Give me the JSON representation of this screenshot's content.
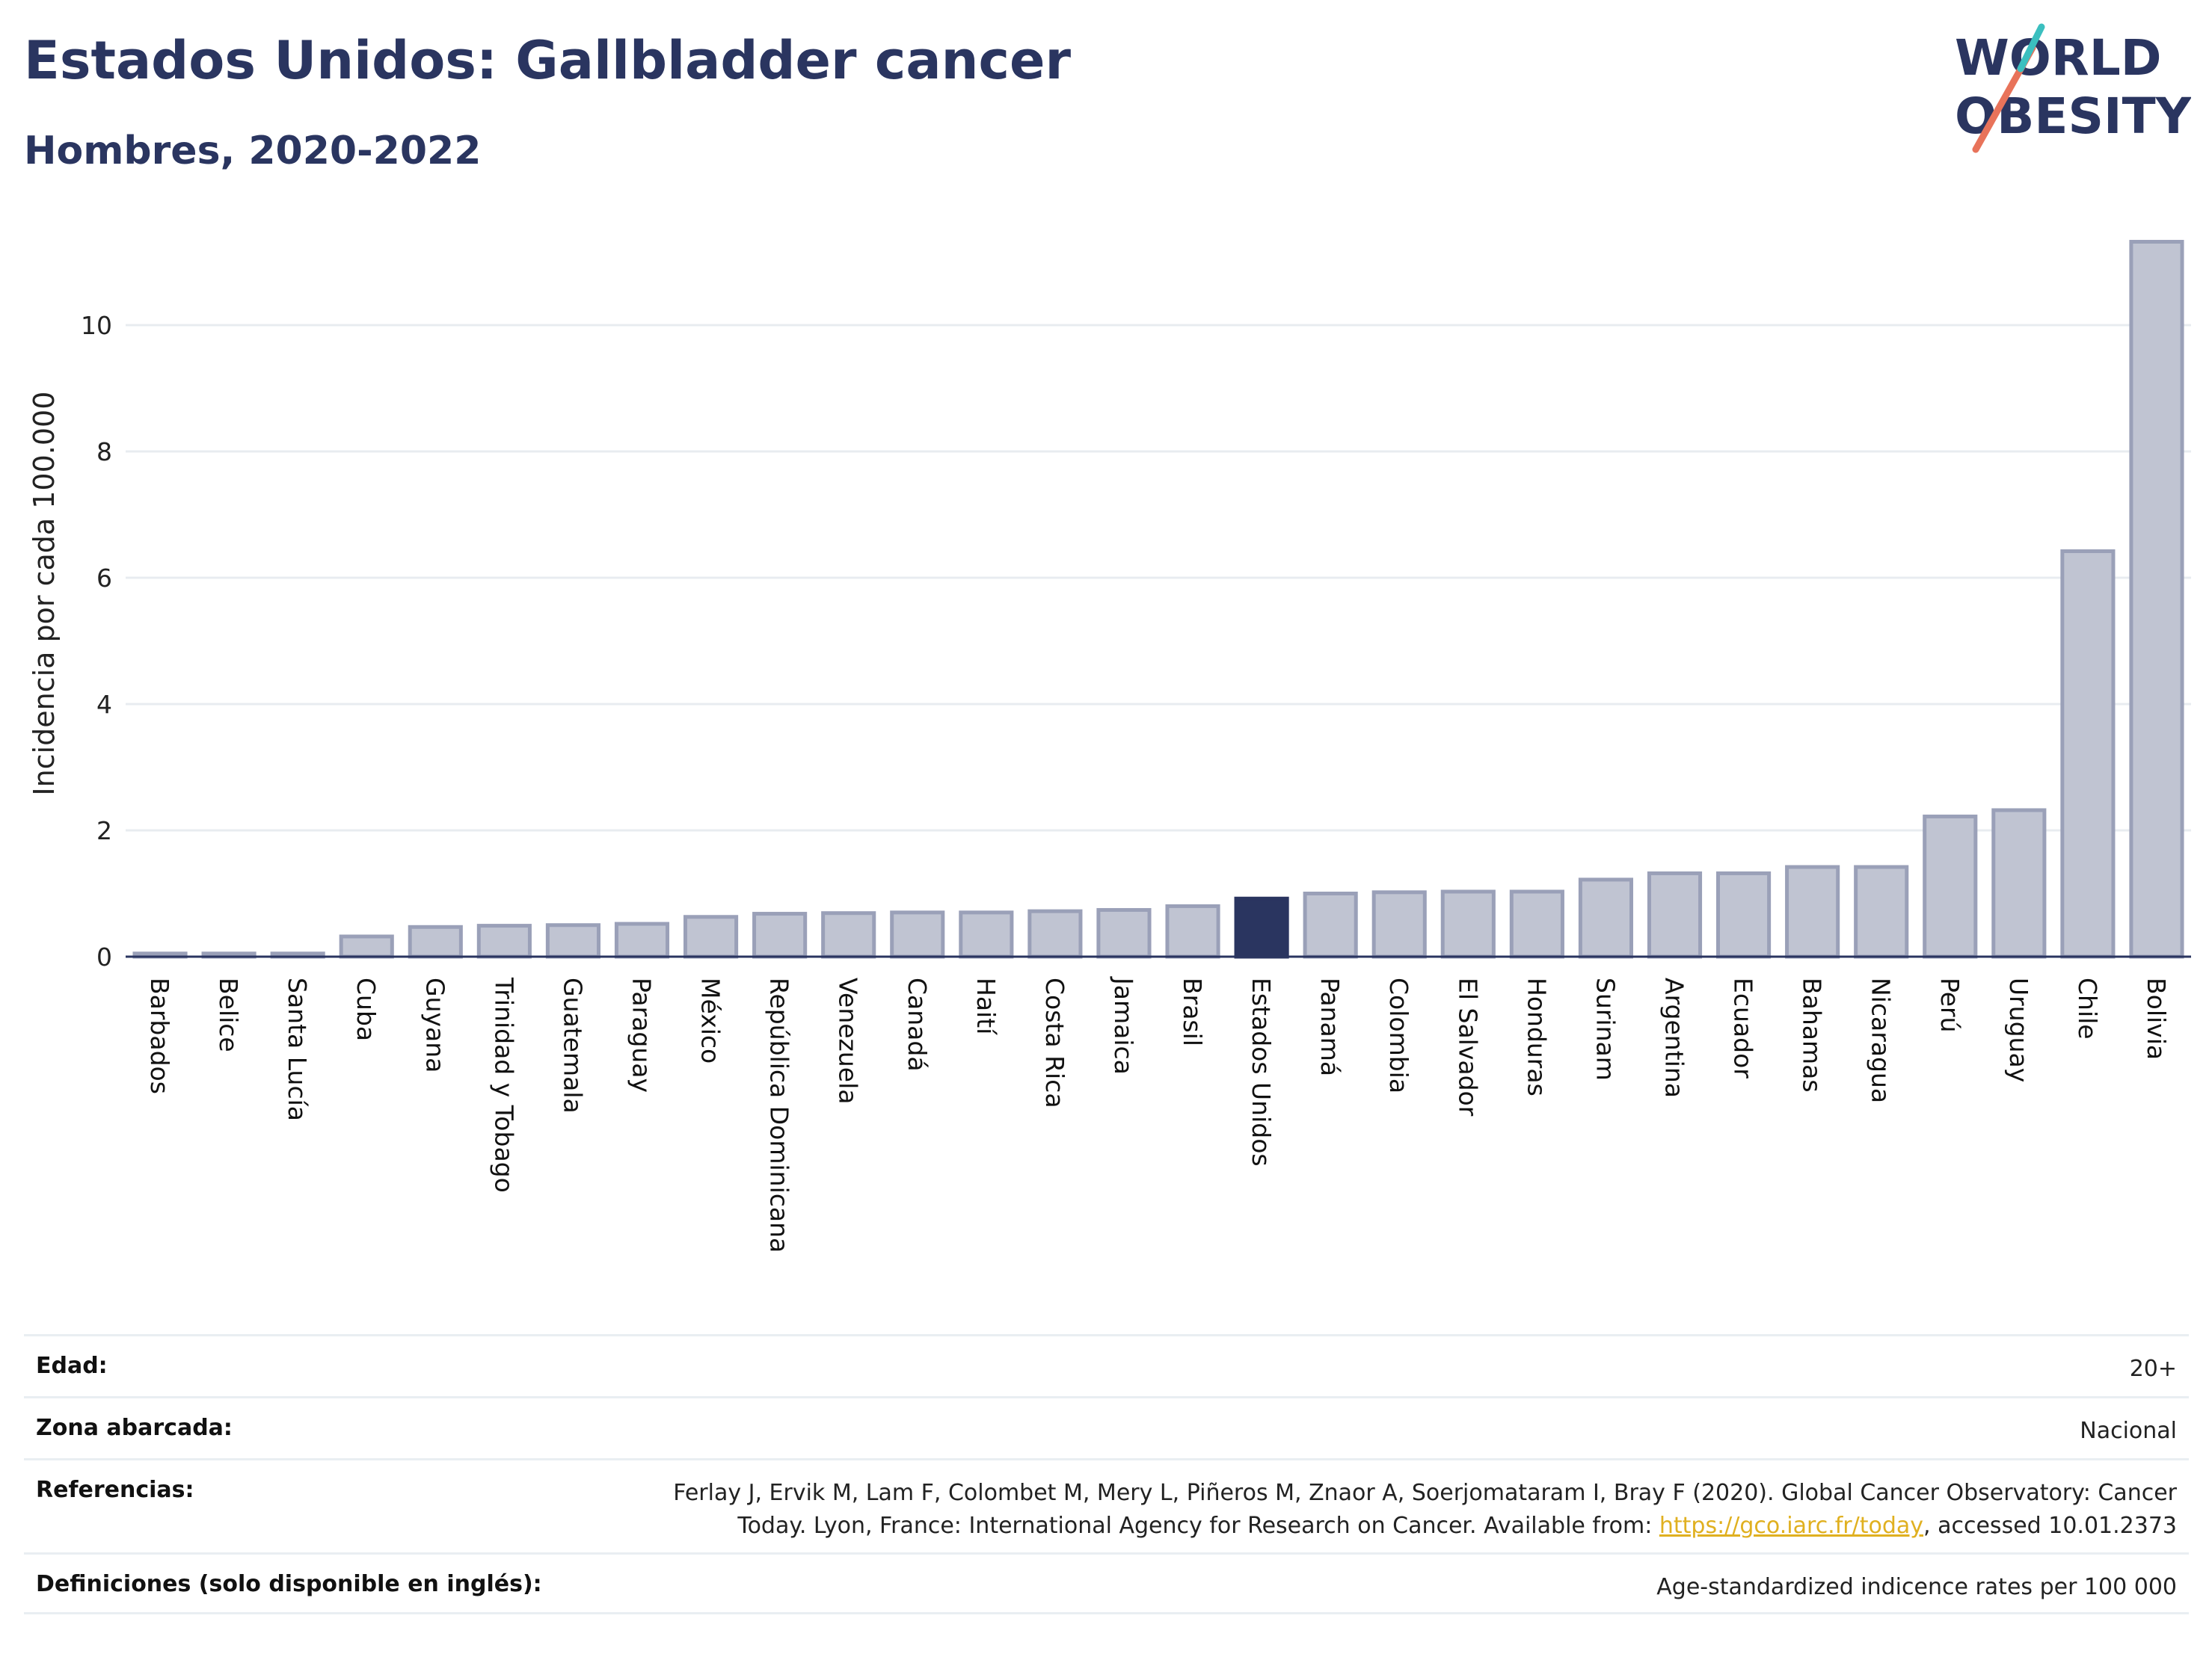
{
  "header": {
    "title": "Estados Unidos: Gallbladder cancer",
    "subtitle": "Hombres, 2020-2022"
  },
  "logo": {
    "line1": "WORLD",
    "line2": "OBESITY"
  },
  "colors": {
    "bar": "#c0c4d2",
    "bar_edge": "#9aa0b8",
    "highlight": "#2a3560",
    "grid": "#e8ecf0",
    "axis": "#2a3560",
    "text": "#2a3560",
    "link": "#e0b020",
    "logo_teal": "#3bbfbf",
    "logo_coral": "#e8735a"
  },
  "chart_data": {
    "type": "bar",
    "ylabel": "Incidencia por cada 100.000",
    "ylim": [
      0,
      11.5
    ],
    "yticks": [
      0,
      2,
      4,
      6,
      8,
      10
    ],
    "highlight": "Estados Unidos",
    "grid": true,
    "categories": [
      "Barbados",
      "Belice",
      "Santa Lucía",
      "Cuba",
      "Guyana",
      "Trinidad y Tobago",
      "Guatemala",
      "Paraguay",
      "México",
      "República Dominicana",
      "Venezuela",
      "Canadá",
      "Haití",
      "Costa Rica",
      "Jamaica",
      "Brasil",
      "Estados Unidos",
      "Panamá",
      "Colombia",
      "El Salvador",
      "Honduras",
      "Surinam",
      "Argentina",
      "Ecuador",
      "Bahamas",
      "Nicaragua",
      "Perú",
      "Uruguay",
      "Chile",
      "Bolivia"
    ],
    "values": [
      0.05,
      0.05,
      0.05,
      0.32,
      0.47,
      0.49,
      0.5,
      0.52,
      0.63,
      0.68,
      0.69,
      0.7,
      0.7,
      0.72,
      0.74,
      0.8,
      0.92,
      1.0,
      1.02,
      1.03,
      1.03,
      1.22,
      1.32,
      1.32,
      1.42,
      1.42,
      2.22,
      2.32,
      6.42,
      11.32
    ]
  },
  "info": {
    "rows": [
      {
        "label": "Edad:",
        "value": "20+"
      },
      {
        "label": "Zona abarcada:",
        "value": "Nacional"
      },
      {
        "label": "Referencias:",
        "value_line1": "Ferlay J, Ervik M, Lam F, Colombet M, Mery L, Piñeros M, Znaor A, Soerjomataram I, Bray F (2020). Global Cancer Observatory: Cancer",
        "value_line2_pre": "Today. Lyon, France: International Agency for Research on Cancer. Available from: ",
        "link": "https://gco.iarc.fr/today",
        "value_line2_post": ", accessed 10.01.2373"
      },
      {
        "label": "Definiciones (solo disponible en inglés):",
        "value": "Age-standardized indicence rates per 100 000"
      }
    ]
  }
}
